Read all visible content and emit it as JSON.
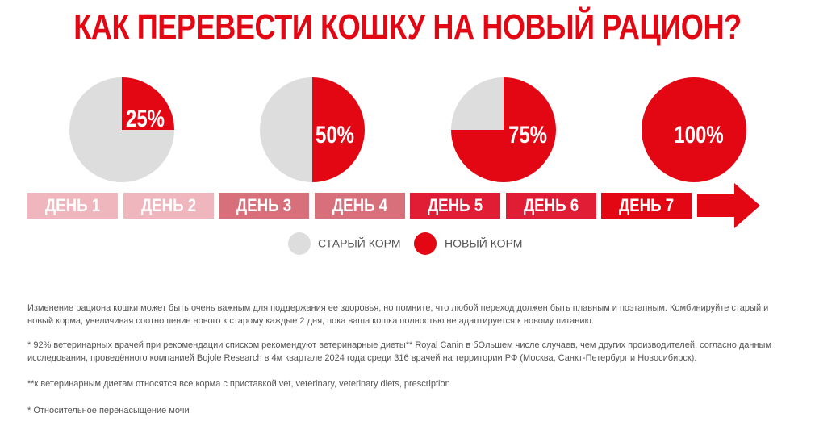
{
  "title": "КАК ПЕРЕВЕСТИ КОШКУ НА НОВЫЙ РАЦИОН?",
  "colors": {
    "new_food": "#e30613",
    "old_food": "#dddddd",
    "title": "#e30613",
    "day_colors": [
      "#efb6bd",
      "#efb6bd",
      "#d8707c",
      "#d8707c",
      "#e11c35",
      "#e11c35",
      "#e30613"
    ],
    "arrow": "#e30613",
    "text": "#555555"
  },
  "chart_data": {
    "type": "pie",
    "pies": [
      {
        "new_pct": 25,
        "label": "25%"
      },
      {
        "new_pct": 50,
        "label": "50%"
      },
      {
        "new_pct": 75,
        "label": "75%"
      },
      {
        "new_pct": 100,
        "label": "100%"
      }
    ],
    "days": [
      "ДЕНЬ 1",
      "ДЕНЬ 2",
      "ДЕНЬ 3",
      "ДЕНЬ 4",
      "ДЕНЬ 5",
      "ДЕНЬ 6",
      "ДЕНЬ 7"
    ],
    "legend": [
      {
        "name": "СТАРЫЙ КОРМ",
        "color": "#dddddd"
      },
      {
        "name": "НОВЫЙ КОРМ",
        "color": "#e30613"
      }
    ]
  },
  "notes": {
    "p1": "Изменение рациона кошки может быть очень важным для поддержания ее здоровья, но помните, что любой переход должен быть плавным и поэтапным. Комбинируйте старый и новый корма, увеличивая соотношение нового к старому каждые 2 дня, пока ваша кошка полностью не адаптируется к новому питанию.",
    "p2": "* 92% ветеринарных врачей при рекомендации списком рекомендуют ветеринарные диеты** Royal Canin в бОльшем числе случаев, чем других производителей, согласно данным исследования, проведённого компанией Bojole Research в 4м квартале 2024 года среди 316 врачей на территории РФ (Москва, Санкт-Петербург и Новосибирск).",
    "p3": "**к ветеринарным диетам относятся все корма с приставкой vet, veterinary, veterinary diets, prescription",
    "p4": "* Относительное перенасыщение мочи"
  }
}
